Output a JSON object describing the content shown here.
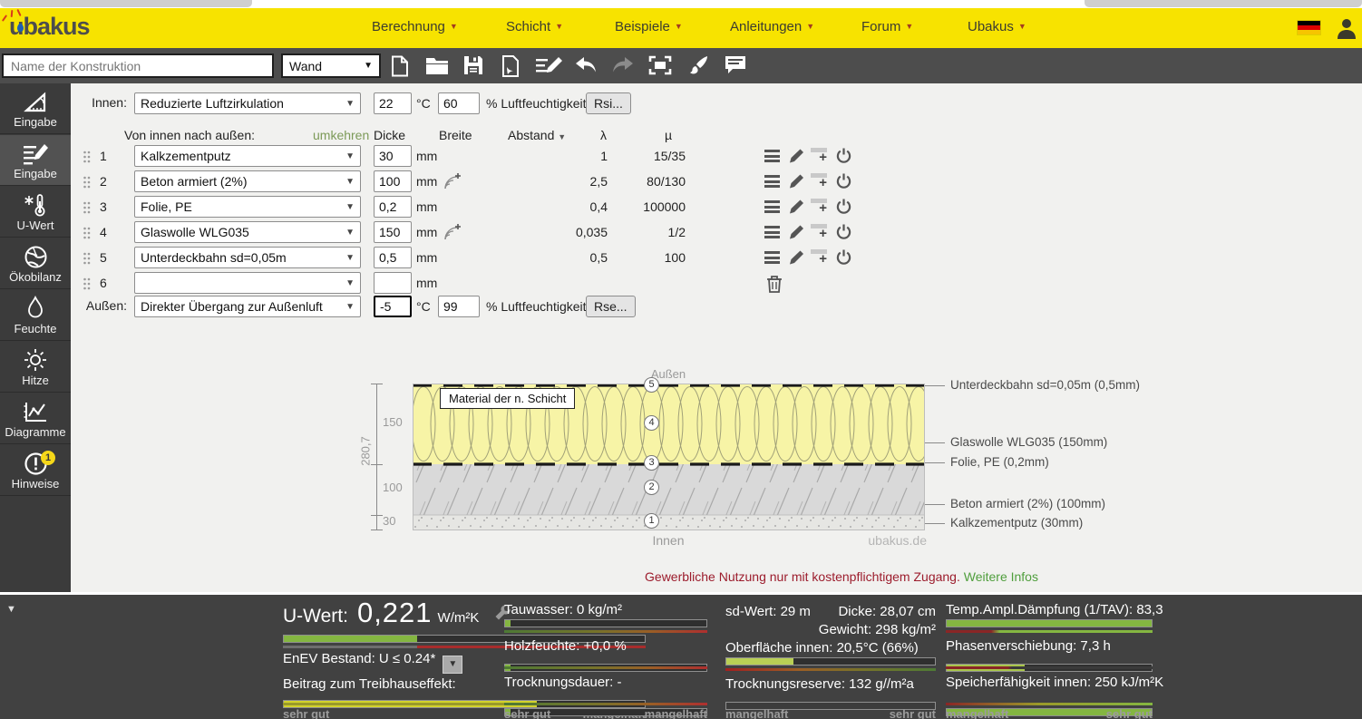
{
  "header": {
    "logo_text": "ubakus",
    "nav": [
      {
        "label": "Berechnung"
      },
      {
        "label": "Schicht"
      },
      {
        "label": "Beispiele"
      },
      {
        "label": "Anleitungen"
      },
      {
        "label": "Forum"
      },
      {
        "label": "Ubakus"
      }
    ]
  },
  "toolbar": {
    "name_placeholder": "Name der Konstruktion",
    "construction_type": "Wand"
  },
  "sidebar": {
    "items": [
      {
        "label": "Eingabe"
      },
      {
        "label": "Eingabe"
      },
      {
        "label": "U-Wert"
      },
      {
        "label": "Ökobilanz"
      },
      {
        "label": "Feuchte"
      },
      {
        "label": "Hitze"
      },
      {
        "label": "Diagramme"
      },
      {
        "label": "Hinweise",
        "badge": "1"
      }
    ]
  },
  "form": {
    "innen": {
      "label": "Innen:",
      "selection": "Reduzierte Luftzirkulation",
      "temperature": "22",
      "temp_unit": "°C",
      "humidity": "60",
      "humidity_label": "% Luftfeuchtigkeit",
      "surface_button": "Rsi..."
    },
    "aussen": {
      "label": "Außen:",
      "selection": "Direkter Übergang zur Außenluft",
      "temperature": "-5",
      "temp_unit": "°C",
      "humidity": "99",
      "humidity_label": "% Luftfeuchtigkeit",
      "surface_button": "Rse..."
    },
    "columns": {
      "direction_label": "Von innen nach außen:",
      "reverse_link": "umkehren",
      "thickness": "Dicke",
      "width": "Breite",
      "spacing": "Abstand",
      "lambda": "λ",
      "mu": "µ"
    },
    "unit_mm": "mm",
    "layers": [
      {
        "nr": "1",
        "material": "Kalkzementputz",
        "thickness": "30",
        "lambda": "1",
        "mu": "15/35"
      },
      {
        "nr": "2",
        "material": "Beton armiert (2%)",
        "thickness": "100",
        "lambda": "2,5",
        "mu": "80/130"
      },
      {
        "nr": "3",
        "material": "Folie, PE",
        "thickness": "0,2",
        "lambda": "0,4",
        "mu": "100000"
      },
      {
        "nr": "4",
        "material": "Glaswolle WLG035",
        "thickness": "150",
        "lambda": "0,035",
        "mu": "1/2"
      },
      {
        "nr": "5",
        "material": "Unterdeckbahn sd=0,05m",
        "thickness": "0,5",
        "lambda": "0,5",
        "mu": "100"
      },
      {
        "nr": "6",
        "material": "",
        "thickness": "",
        "lambda": "",
        "mu": ""
      }
    ]
  },
  "diagram": {
    "outside_label": "Außen",
    "inside_label": "Innen",
    "watermark": "ubakus.de",
    "tooltip": "Material der n. Schicht",
    "total_thickness": "280,7",
    "dim_insulation": "150",
    "dim_concrete": "100",
    "dim_plaster": "30",
    "layer_numbers": [
      "5",
      "4",
      "3",
      "2",
      "1"
    ],
    "right_labels": [
      "Unterdeckbahn sd=0,05m (0,5mm)",
      "Glaswolle WLG035 (150mm)",
      "Folie, PE (0,2mm)",
      "Beton armiert (2%) (100mm)",
      "Kalkzementputz (30mm)"
    ]
  },
  "notice": {
    "text": "Gewerbliche Nutzung nur mit kostenpflichtigem Zugang.",
    "link": "Weitere Infos"
  },
  "results": {
    "u_value": {
      "label": "U-Wert:",
      "value": "0,221",
      "unit": "W/m²K",
      "bar_pct": 37
    },
    "enev_label": "EnEV Bestand: U ≤ 0.24*",
    "greenhouse": {
      "label": "Beitrag zum Treibhauseffekt:",
      "bar_pct": 70
    },
    "scale_good": "sehr gut",
    "scale_bad": "mangelhaft",
    "moisture": {
      "rows": [
        {
          "label": "Tauwasser: 0 kg/m²",
          "bar_pct": 2.5
        },
        {
          "label": "Holzfeuchte: +0,0 %",
          "bar_pct": 2.5
        },
        {
          "label": "Trocknungsdauer: -",
          "bar_pct": 2.5
        }
      ]
    },
    "geometry": {
      "sd": "sd-Wert: 29 m",
      "thickness": "Dicke: 28,07 cm",
      "weight": "Gewicht: 298 kg/m²",
      "surface": {
        "label": "Oberfläche innen: 20,5°C (66%)",
        "bar_pct": 32
      },
      "reserve": {
        "label": "Trocknungsreserve: 132 g//m²a",
        "bar_pct": 0
      }
    },
    "heat": {
      "rows": [
        {
          "label": "Temp.Ampl.Dämpfung (1/TAV): 83,3",
          "bar_pct": 100
        },
        {
          "label": "Phasenverschiebung: 7,3 h",
          "bar_pct": 38
        },
        {
          "label": "Speicherfähigkeit innen: 250 kJ/m²K",
          "bar_pct": 100
        }
      ]
    }
  },
  "colors": {
    "accent_yellow": "#f7e300",
    "bar_green": "#84b641",
    "bar_yellow": "#d3d32c",
    "alert_red": "#9c1c2c",
    "link_green": "#4f9e3c"
  }
}
